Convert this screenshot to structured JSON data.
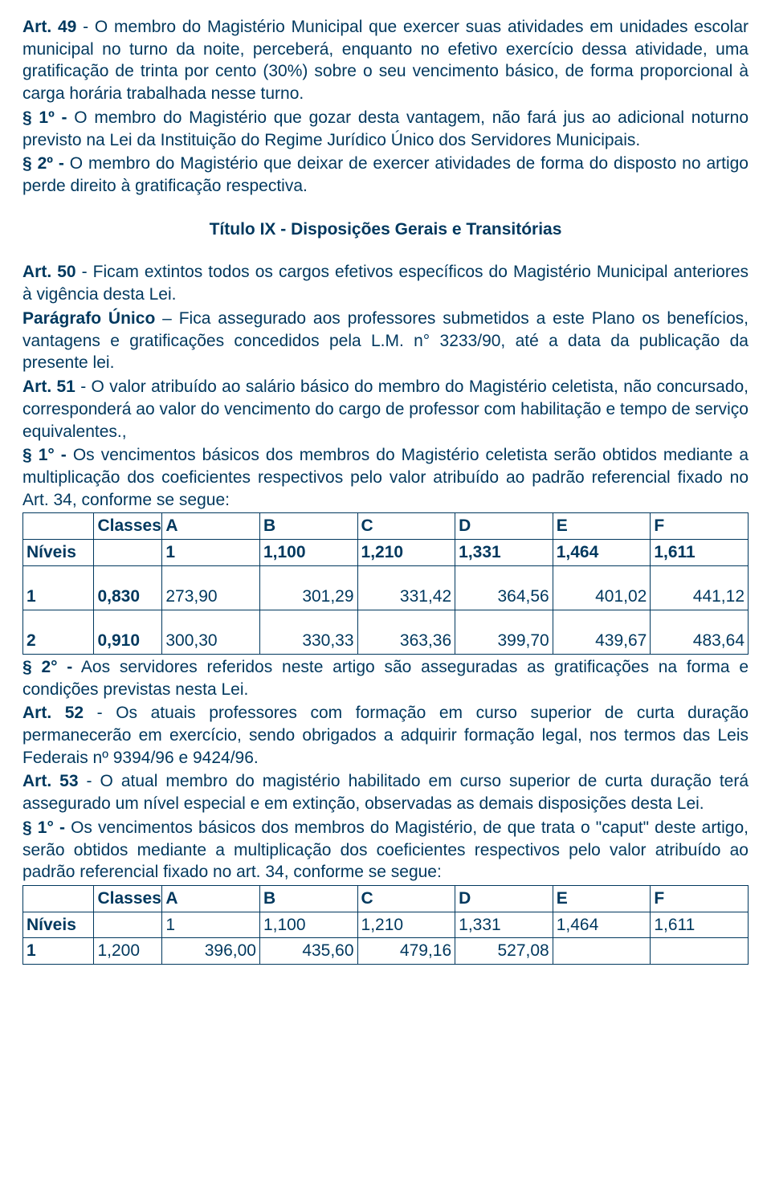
{
  "para1": {
    "art49_label": "Art. 49",
    "art49_text": " - O membro do Magistério Municipal que exercer suas atividades em unidades escolar municipal no turno da noite, perceberá, enquanto no efetivo exercício dessa atividade, uma gratificação de trinta por cento (30%) sobre o seu vencimento básico, de forma proporcional à carga horária trabalhada nesse turno.",
    "s1_label": "§ 1º -",
    "s1_text": " O membro do Magistério que gozar desta vantagem, não fará jus ao adicional noturno previsto na Lei da Instituição do Regime Jurídico Único dos Servidores Municipais.",
    "s2_label": "§ 2º -",
    "s2_text": " O membro do Magistério que deixar de exercer atividades de forma do disposto no artigo perde direito à gratificação respectiva."
  },
  "title9": "Título IX   - Disposições Gerais e Transitórias",
  "para2": {
    "art50_label": "Art. 50",
    "art50_text": " - Ficam extintos todos os cargos efetivos específicos do Magistério Municipal anteriores à vigência desta Lei.",
    "pu_label": "Parágrafo Único",
    "pu_text": " – Fica assegurado aos professores submetidos a este Plano os benefícios, vantagens e gratificações concedidos pela L.M. n° 3233/90, até a data da publicação da presente lei.",
    "art51_label": "Art. 51",
    "art51_text": " - O valor atribuído ao salário básico do membro do Magistério celetista, não concursado, corresponderá ao valor do vencimento do cargo de professor com habilitação e tempo de serviço equivalentes.,",
    "s1_label": "§ 1° -",
    "s1_text": " Os vencimentos básicos dos membros do Magistério celetista serão obtidos mediante a multiplicação dos coeficientes respectivos pelo valor atribuído ao padrão referencial fixado no Art. 34, conforme se segue:"
  },
  "table1": {
    "header": {
      "classes": "Classes",
      "niveis": "Níveis",
      "cols": [
        "A",
        "B",
        "C",
        "D",
        "E",
        "F"
      ],
      "coefs": [
        "1",
        "1,100",
        "1,210",
        "1,331",
        "1,464",
        "1,611"
      ]
    },
    "rows": [
      {
        "nivel": "1",
        "coef": "0,830",
        "vals": [
          "273,90",
          "301,29",
          "331,42",
          "364,56",
          "401,02",
          "441,12"
        ]
      },
      {
        "nivel": "2",
        "coef": "0,910",
        "vals": [
          "300,30",
          "330,33",
          "363,36",
          "399,70",
          "439,67",
          "483,64"
        ]
      }
    ]
  },
  "para3": {
    "s2_label": "§ 2° -",
    "s2_text": " Aos servidores referidos neste artigo são asseguradas as gratificações na forma e condições previstas nesta Lei.",
    "art52_label": "Art. 52",
    "art52_text": " - Os atuais professores com formação em curso superior de curta duração permanecerão em exercício, sendo obrigados a adquirir formação legal, nos termos das Leis Federais nº 9394/96 e 9424/96.",
    "art53_label": "Art. 53",
    "art53_text": " - O atual membro do magistério habilitado em curso superior de curta duração terá assegurado um nível especial e em extinção, observadas as demais disposições desta Lei.",
    "s1_label": "§ 1° -",
    "s1_text": " Os vencimentos básicos dos membros do Magistério, de que trata o \"caput\" deste artigo, serão obtidos mediante a multiplicação dos coeficientes respectivos pelo valor atribuído ao padrão referencial fixado no art. 34, conforme se segue:"
  },
  "table2": {
    "header": {
      "classes": "Classes",
      "niveis": "Níveis",
      "cols": [
        "A",
        "B",
        "C",
        "D",
        "E",
        "F"
      ],
      "coefs": [
        "1",
        "1,100",
        "1,210",
        "1,331",
        "1,464",
        "1,611"
      ]
    },
    "rows": [
      {
        "nivel": "1",
        "coef": "1,200",
        "vals": [
          "396,00",
          "435,60",
          "479,16",
          "527,08",
          "",
          ""
        ]
      }
    ]
  },
  "style": {
    "text_color": "#00385e",
    "border_color": "#00385e",
    "font_size_body": 21,
    "font_family": "Arial"
  }
}
